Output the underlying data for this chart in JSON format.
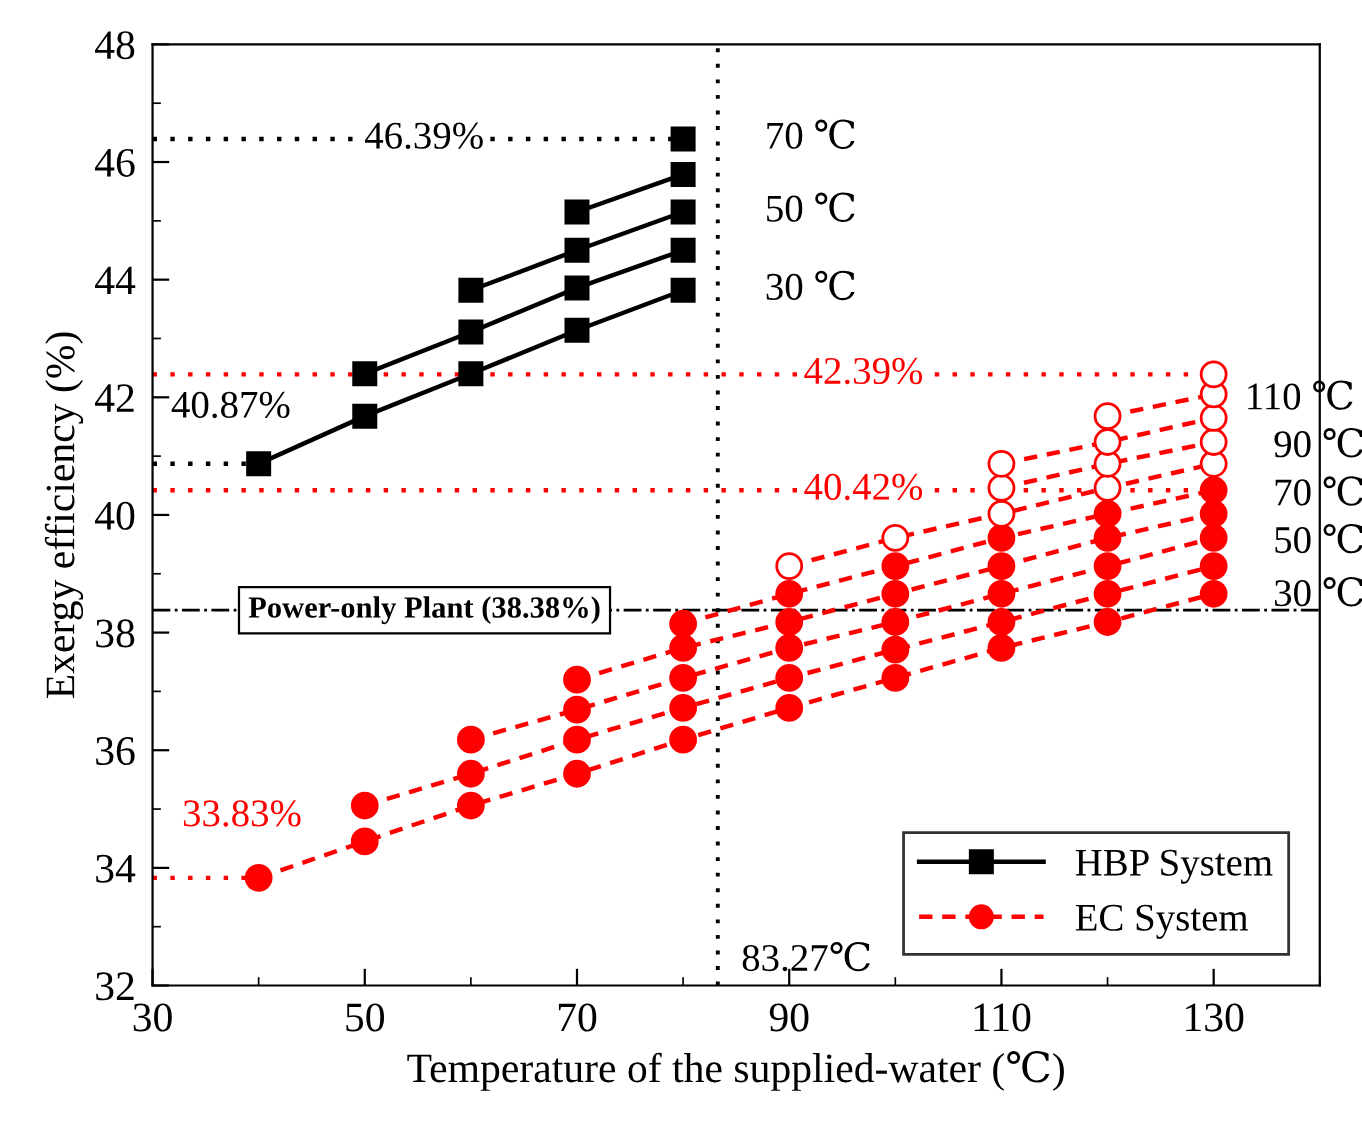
{
  "chart_data": {
    "type": "line",
    "xlabel": "Temperature of the supplied-water (℃)",
    "ylabel": "Exergy efficiency (%)",
    "xlim": [
      30,
      140
    ],
    "xticks": [
      30,
      50,
      70,
      90,
      110,
      130
    ],
    "ylim": [
      32,
      48
    ],
    "yticks": [
      32,
      34,
      36,
      38,
      40,
      42,
      44,
      46,
      48
    ],
    "grid": false,
    "legend": "bottom right",
    "series": [
      {
        "name": "HBP System",
        "color": "#000000",
        "marker": "square",
        "line_style": "solid",
        "x": [
          40,
          50,
          60,
          70,
          80
        ],
        "values": [
          40.87,
          41.68,
          42.4,
          43.14,
          43.82
        ]
      },
      {
        "color": "#000000",
        "marker": "square",
        "line_style": "solid",
        "x": [
          50,
          60,
          70,
          80
        ],
        "values": [
          42.4,
          43.11,
          43.86,
          44.5
        ]
      },
      {
        "color": "#000000",
        "marker": "square",
        "line_style": "solid",
        "x": [
          60,
          70,
          80
        ],
        "values": [
          43.82,
          44.5,
          45.15
        ]
      },
      {
        "color": "#000000",
        "marker": "square",
        "line_style": "solid",
        "x": [
          70,
          80
        ],
        "values": [
          45.15,
          45.79
        ]
      },
      {
        "color": "#000000",
        "marker": "square",
        "line_style": "solid",
        "x": [
          80
        ],
        "values": [
          46.39
        ]
      },
      {
        "name": "EC System",
        "color": "#ff0000",
        "marker": "circle",
        "line_style": "dashed",
        "x": [
          40,
          50,
          60,
          70,
          80,
          90,
          100,
          110,
          120,
          130
        ],
        "values": [
          33.83,
          34.45,
          35.06,
          35.6,
          36.18,
          36.72,
          37.23,
          37.74,
          38.18,
          38.66
        ]
      },
      {
        "color": "#ff0000",
        "marker": "circle",
        "line_style": "dashed",
        "x": [
          50,
          60,
          70,
          80,
          90,
          100,
          110,
          120,
          130
        ],
        "values": [
          35.06,
          35.6,
          36.18,
          36.72,
          37.23,
          37.71,
          38.18,
          38.66,
          39.13
        ]
      },
      {
        "color": "#ff0000",
        "marker": "circle",
        "line_style": "dashed",
        "x": [
          60,
          70,
          80,
          90,
          100,
          110,
          120,
          130
        ],
        "values": [
          36.18,
          36.69,
          37.23,
          37.74,
          38.18,
          38.66,
          39.13,
          39.61
        ]
      },
      {
        "color": "#ff0000",
        "marker": "circle",
        "line_style": "dashed",
        "x": [
          70,
          80,
          90,
          100,
          110,
          120,
          130
        ],
        "values": [
          37.2,
          37.74,
          38.18,
          38.66,
          39.13,
          39.61,
          40.02
        ]
      },
      {
        "color": "#ff0000",
        "marker": "circle",
        "line_style": "dashed",
        "x": [
          80,
          90,
          100,
          110,
          120,
          130
        ],
        "values": [
          38.15,
          38.66,
          39.13,
          39.61,
          40.02,
          40.42
        ]
      },
      {
        "color": "#ff0000",
        "marker": "circle",
        "line_style": "dashed",
        "x": [
          90,
          100,
          110,
          120,
          130
        ],
        "values": [
          39.13,
          39.61,
          40.02,
          40.46,
          40.87
        ],
        "colors": [
          "#ffffff",
          "#ffffff",
          "#ffffff",
          "#ffffff",
          "#ffffff"
        ]
      },
      {
        "color": "#ff0000",
        "marker": "circle",
        "line_style": "dashed",
        "x": [
          110,
          120,
          130
        ],
        "values": [
          40.46,
          40.87,
          41.24
        ],
        "colors": [
          "#ffffff",
          "#ffffff",
          "#ffffff"
        ]
      },
      {
        "color": "#ff0000",
        "marker": "circle",
        "line_style": "dashed",
        "x": [
          110,
          120,
          130
        ],
        "values": [
          40.87,
          41.24,
          41.65
        ],
        "colors": [
          "#ffffff",
          "#ffffff",
          "#ffffff"
        ]
      },
      {
        "color": "#ff0000",
        "marker": "circle",
        "line_style": "dashed",
        "x": [
          120,
          130
        ],
        "values": [
          41.68,
          42.05
        ],
        "colors": [
          "#ffffff",
          "#ffffff"
        ]
      },
      {
        "color": "#ff0000",
        "marker": "circle",
        "line_style": "dashed",
        "x": [
          130
        ],
        "values": [
          42.39
        ],
        "colors": [
          "#ffffff"
        ]
      },
      {
        "color": "#000000",
        "marker": "none",
        "line_style": "dotted",
        "x": [
          30,
          80
        ],
        "values": [
          46.39,
          46.39
        ]
      },
      {
        "color": "#000000",
        "marker": "none",
        "line_style": "dotted",
        "x": [
          30,
          40
        ],
        "values": [
          40.87,
          40.87
        ]
      },
      {
        "color": "#ff0000",
        "marker": "none",
        "line_style": "dotted",
        "x": [
          30,
          130
        ],
        "values": [
          42.39,
          42.39
        ]
      },
      {
        "color": "#ff0000",
        "marker": "none",
        "line_style": "dotted",
        "x": [
          30,
          130
        ],
        "values": [
          40.42,
          40.42
        ]
      },
      {
        "color": "#ff0000",
        "marker": "none",
        "line_style": "dotted",
        "x": [
          30,
          40
        ],
        "values": [
          33.83,
          33.83
        ]
      }
    ],
    "ref_lines": [
      {
        "axis": "y",
        "value": 38.38,
        "label": "Power-only Plant (38.38%)",
        "color": "#000000",
        "line_style": "dashdot"
      },
      {
        "axis": "x",
        "value": 83.27,
        "color": "#000000",
        "line_style": "dotted"
      }
    ],
    "annotations": [
      {
        "text": "46.39%",
        "x": 55.6,
        "y": 46.39
      },
      {
        "text": "40.87%",
        "x": 40,
        "y": 40.87
      },
      {
        "text": "42.39%",
        "x": 97,
        "y": 42.39
      },
      {
        "text": "40.42%",
        "x": 97,
        "y": 40.42
      },
      {
        "text": "33.83%",
        "x": 40,
        "y": 33.83
      },
      {
        "text": "83.27℃",
        "x": 83.27,
        "y": 32.41
      },
      {
        "text": "70 ℃",
        "x": 80,
        "y": 46.39
      },
      {
        "text": "50 ℃",
        "x": 80,
        "y": 45.15
      },
      {
        "text": "30 ℃",
        "x": 80,
        "y": 43.82
      },
      {
        "text": "110 ℃",
        "x": 130,
        "y": 42.05
      },
      {
        "text": "90 ℃",
        "x": 130,
        "y": 41.24
      },
      {
        "text": "70 ℃",
        "x": 130,
        "y": 40.42
      },
      {
        "text": "50 ℃",
        "x": 130,
        "y": 39.61
      },
      {
        "text": "30 ℃",
        "x": 130,
        "y": 38.66
      }
    ]
  }
}
